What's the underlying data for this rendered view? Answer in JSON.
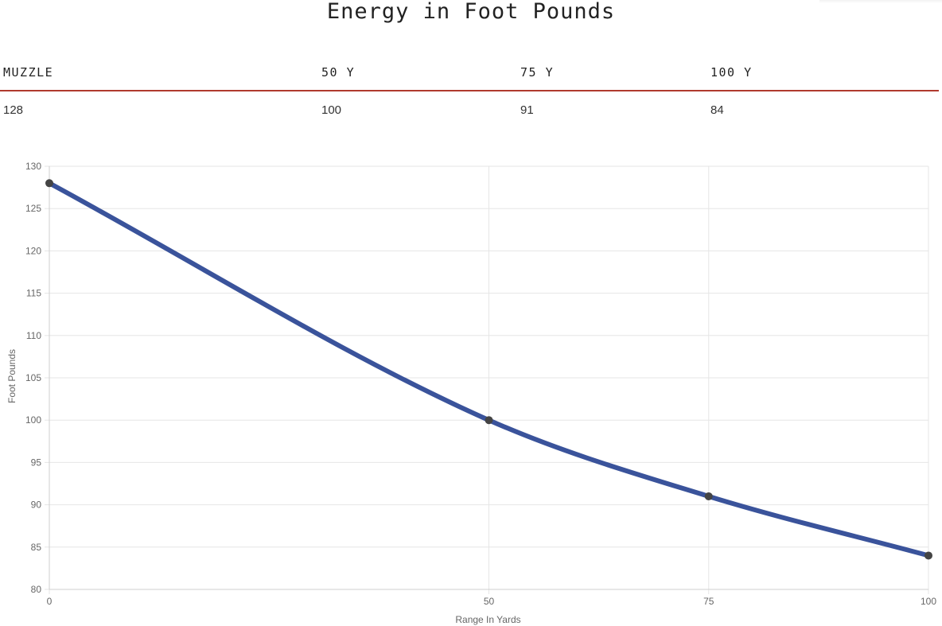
{
  "page": {
    "title": "Energy in Foot Pounds"
  },
  "table": {
    "headers": [
      "MUZZLE",
      "50 Y",
      "75 Y",
      "100 Y"
    ],
    "values": [
      "128",
      "100",
      "91",
      "84"
    ]
  },
  "chart_data": {
    "type": "line",
    "title": "",
    "xlabel": "Range In Yards",
    "ylabel": "Foot Pounds",
    "x": [
      0,
      50,
      75,
      100
    ],
    "x_tick_labels": [
      "0",
      "50",
      "75",
      "100"
    ],
    "series": [
      {
        "values": [
          128,
          100,
          91,
          84
        ],
        "color": "#3a539b"
      }
    ],
    "ylim": [
      80,
      130
    ],
    "y_ticks": [
      80,
      85,
      90,
      95,
      100,
      105,
      110,
      115,
      120,
      125,
      130
    ],
    "grid": true,
    "point_color": "#444444",
    "grid_color": "#e6e6e6"
  }
}
